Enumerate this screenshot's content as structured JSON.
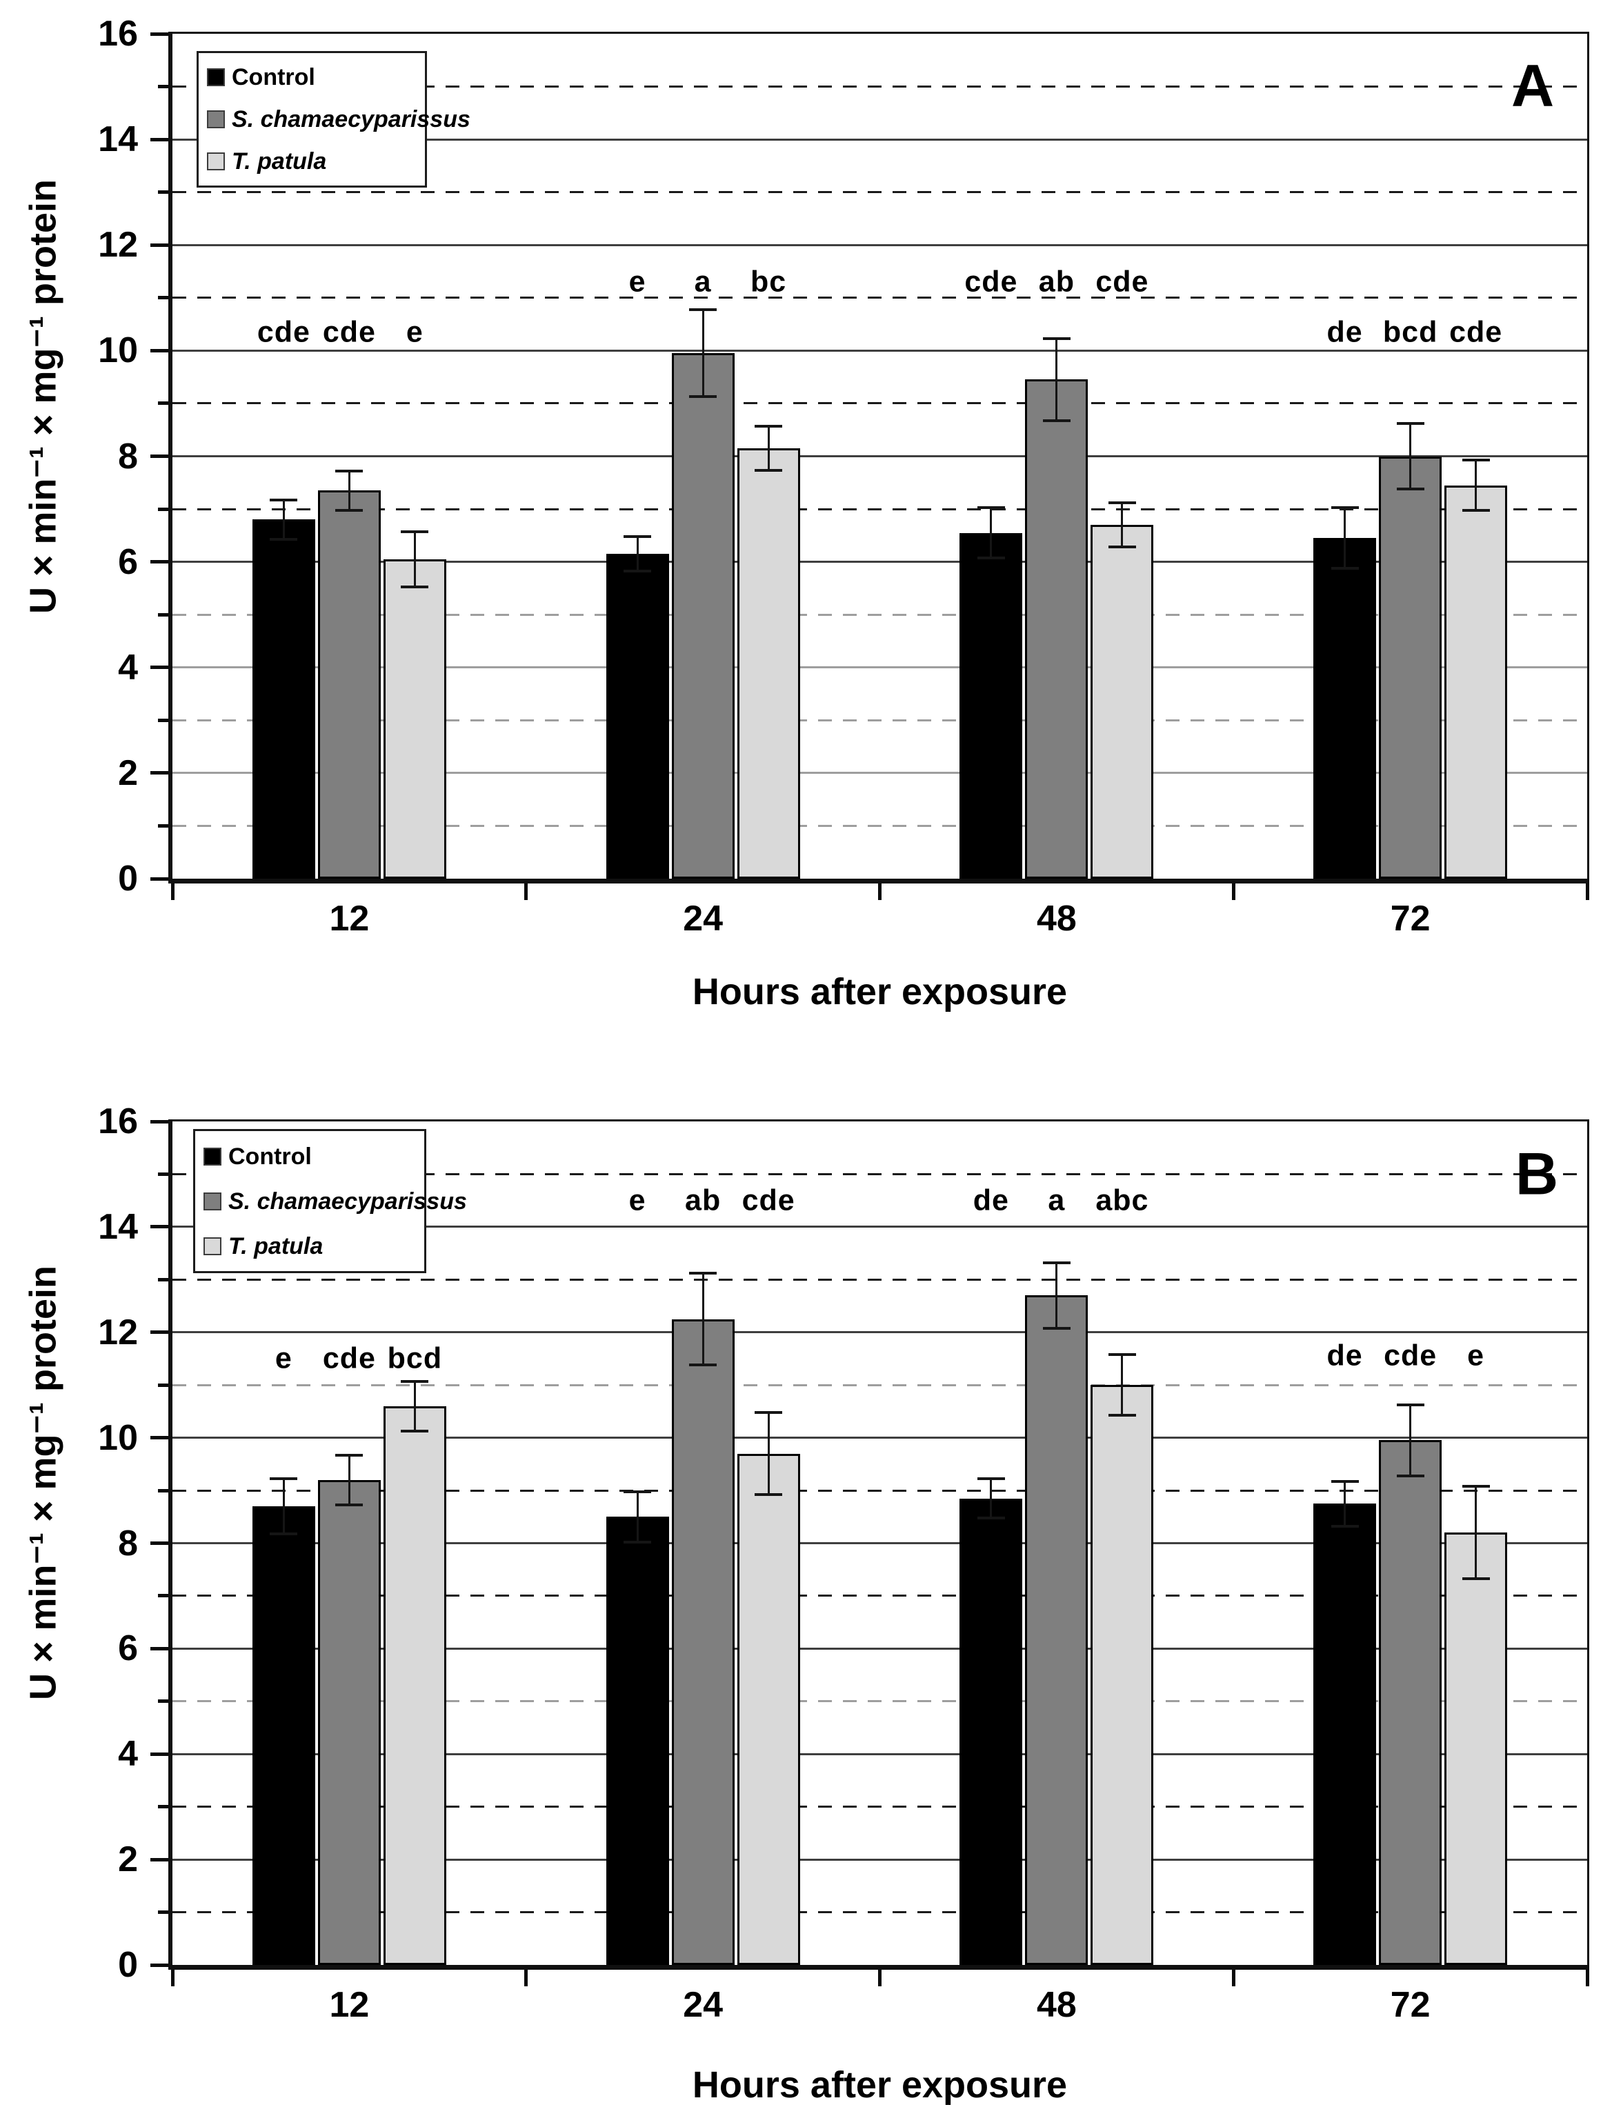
{
  "figure": {
    "background": "#ffffff",
    "x_axis_title": "Hours after exposure",
    "y_axis_title": "U × min⁻¹ × mg⁻¹ protein",
    "legend_labels": [
      "Control",
      "S. chamaecyparissus",
      "T. patula"
    ],
    "series_colors": {
      "control": "#000000",
      "s_chamaecyparissus": "#7f7f7f",
      "t_patula": "#d9d9d9"
    },
    "gridline_dark": "#1a1a1a",
    "gridline_gray": "#9e9e9e",
    "solid_gridline_color": "#3f3f3f"
  },
  "chart_data": [
    {
      "type": "bar",
      "panel_label": "A",
      "xlabel": "Hours after exposure",
      "ylabel": "U × min⁻¹ × mg⁻¹ protein",
      "ylim": [
        0,
        16
      ],
      "ytick_step": 2,
      "grid": "solid lines at even values, dashed lines at odd values",
      "gray_dashed": [
        1,
        3,
        5
      ],
      "gray_solid": [
        2,
        4
      ],
      "categories": [
        "12",
        "24",
        "48",
        "72"
      ],
      "legend_position": "top-left",
      "series": [
        {
          "name": "Control",
          "italic": false,
          "color": "#000000",
          "values": [
            6.8,
            6.15,
            6.55,
            6.45
          ],
          "errors": [
            0.4,
            0.35,
            0.5,
            0.6
          ]
        },
        {
          "name": "S. chamaecyparissus",
          "italic": true,
          "color": "#7f7f7f",
          "values": [
            7.35,
            9.95,
            9.45,
            8.0
          ],
          "errors": [
            0.4,
            0.85,
            0.8,
            0.65
          ]
        },
        {
          "name": "T. patula",
          "italic": true,
          "color": "#d9d9d9",
          "values": [
            6.05,
            8.15,
            6.7,
            7.45
          ],
          "errors": [
            0.55,
            0.45,
            0.45,
            0.5
          ]
        }
      ],
      "sig_letters": [
        [
          "cde",
          "cde",
          "e"
        ],
        [
          "e",
          "a",
          "bc"
        ],
        [
          "cde",
          "ab",
          "cde"
        ],
        [
          "de",
          "bcd",
          "cde"
        ]
      ],
      "sig_letters_y": [
        10.35,
        11.3,
        11.3,
        10.35
      ]
    },
    {
      "type": "bar",
      "panel_label": "B",
      "xlabel": "Hours after exposure",
      "ylabel": "U × min⁻¹ × mg⁻¹ protein",
      "ylim": [
        0,
        16
      ],
      "ytick_step": 2,
      "grid": "solid lines at even values, dashed lines at odd values",
      "gray_dashed": [
        5,
        11
      ],
      "gray_solid": [],
      "categories": [
        "12",
        "24",
        "48",
        "72"
      ],
      "legend_position": "top-left",
      "series": [
        {
          "name": "Control",
          "italic": false,
          "color": "#000000",
          "values": [
            8.7,
            8.5,
            8.85,
            8.75
          ],
          "errors": [
            0.55,
            0.5,
            0.4,
            0.45
          ]
        },
        {
          "name": "S. chamaecyparissus",
          "italic": true,
          "color": "#7f7f7f",
          "values": [
            9.2,
            12.25,
            12.7,
            9.95
          ],
          "errors": [
            0.5,
            0.9,
            0.65,
            0.7
          ]
        },
        {
          "name": "T. patula",
          "italic": true,
          "color": "#d9d9d9",
          "values": [
            10.6,
            9.7,
            11.0,
            8.2
          ],
          "errors": [
            0.5,
            0.8,
            0.6,
            0.9
          ]
        }
      ],
      "sig_letters": [
        [
          "e",
          "cde",
          "bcd"
        ],
        [
          "e",
          "ab",
          "cde"
        ],
        [
          "de",
          "a",
          "abc"
        ],
        [
          "de",
          "cde",
          "e"
        ]
      ],
      "sig_letters_y": [
        11.5,
        14.5,
        14.5,
        11.55
      ]
    }
  ]
}
